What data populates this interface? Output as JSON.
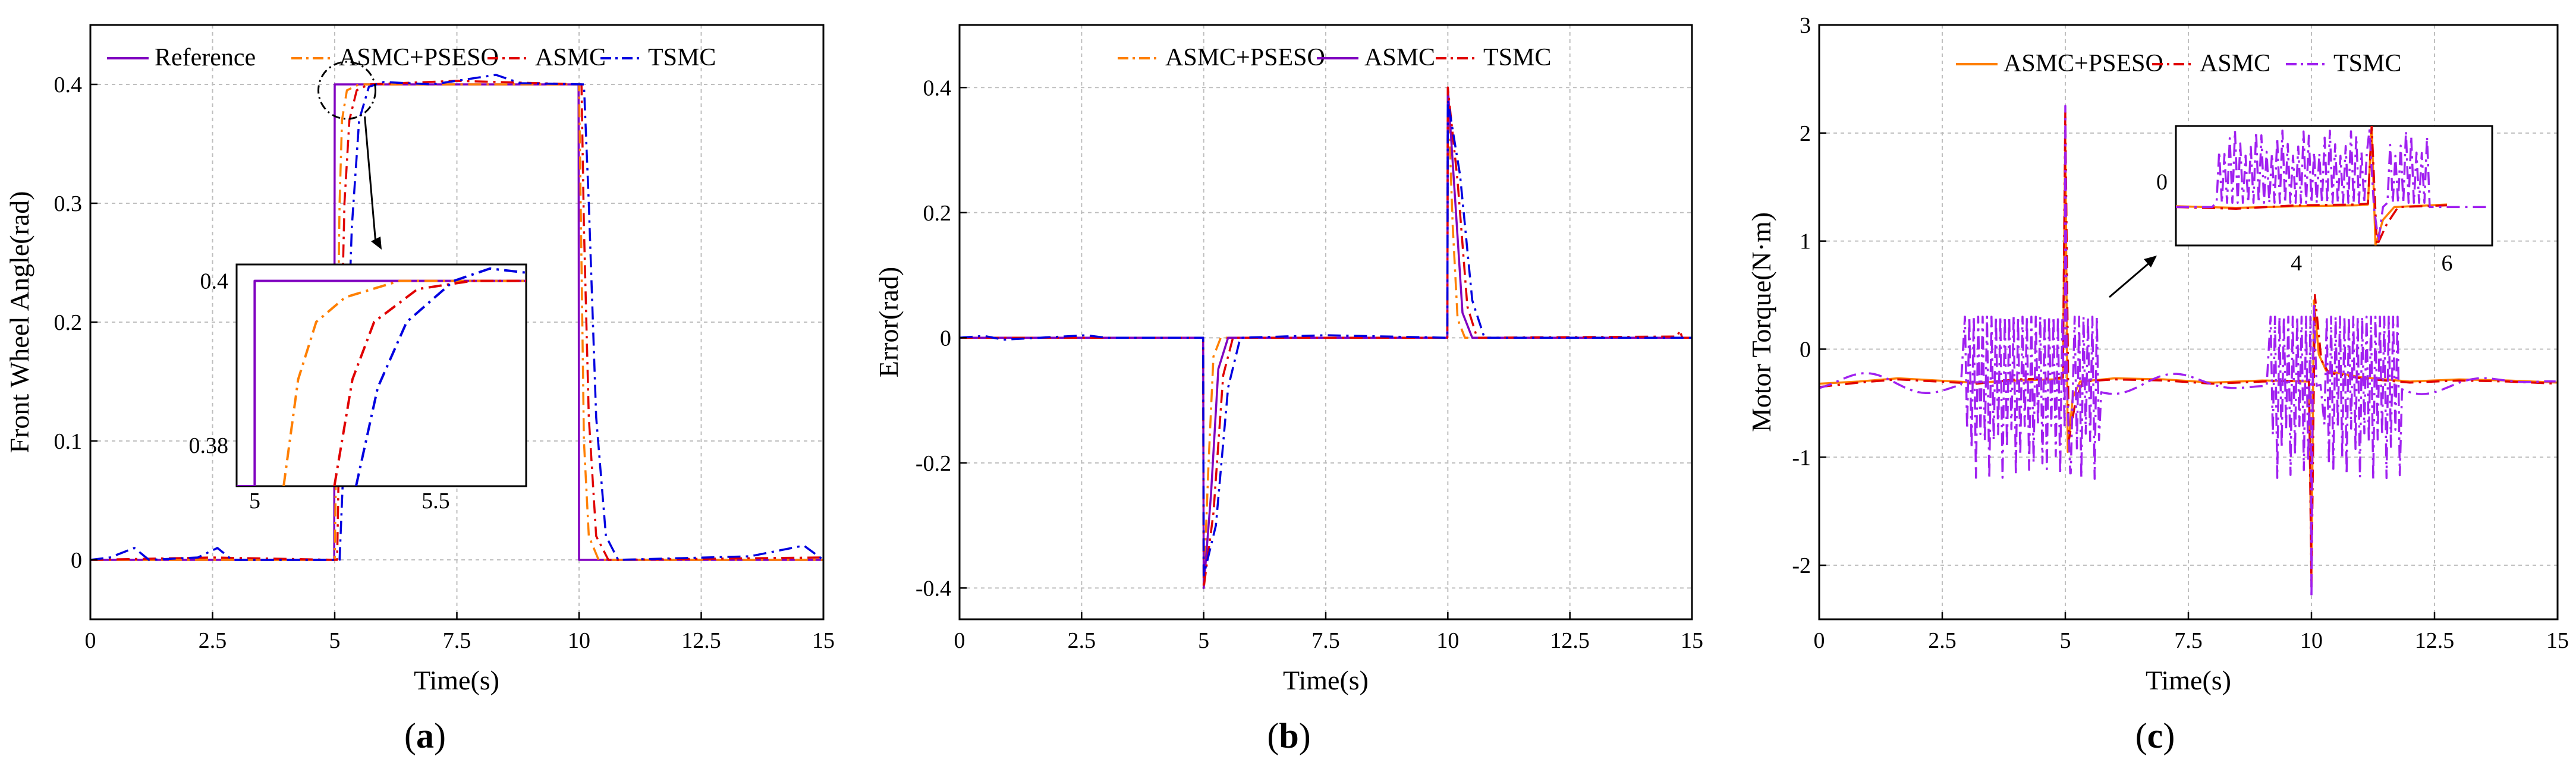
{
  "colors": {
    "reference": "#8000C0",
    "asmc_pseso": "#FF7F00",
    "asmc": "#E00000",
    "tsmc": "#0000E0",
    "tsmc_c": "#A020F0",
    "grid": "#BFBFBF"
  },
  "chart_data": [
    {
      "type": "line",
      "panel_label": "(a)",
      "panel_letter": "a",
      "xlabel": "Time(s)",
      "ylabel": "Front Wheel Angle(rad)",
      "xlim": [
        0,
        15
      ],
      "ylim": [
        -0.05,
        0.45
      ],
      "xticks": [
        0,
        2.5,
        5,
        7.5,
        10,
        12.5,
        15
      ],
      "xtick_labels": [
        "0",
        "2.5",
        "5",
        "7.5",
        "10",
        "12.5",
        "15"
      ],
      "yticks": [
        0,
        0.1,
        0.2,
        0.3,
        0.4
      ],
      "ytick_labels": [
        "0",
        "0.1",
        "0.2",
        "0.3",
        "0.4"
      ],
      "grid": true,
      "legend": {
        "placement": "top",
        "entries": [
          "Reference",
          "ASMC+PSESO",
          "ASMC",
          "TSMC"
        ]
      },
      "series": [
        {
          "name": "Reference",
          "color_key": "reference",
          "dash": "solid",
          "points": [
            [
              0,
              0
            ],
            [
              4.99,
              0
            ],
            [
              5.0,
              0.4
            ],
            [
              9.99,
              0.4
            ],
            [
              10.0,
              0
            ],
            [
              15,
              0
            ]
          ]
        },
        {
          "name": "ASMC+PSESO",
          "color_key": "asmc_pseso",
          "dash": "dashdot",
          "points": [
            [
              0,
              0
            ],
            [
              5.0,
              0
            ],
            [
              5.05,
              0.15
            ],
            [
              5.1,
              0.3
            ],
            [
              5.15,
              0.37
            ],
            [
              5.25,
              0.395
            ],
            [
              5.5,
              0.4
            ],
            [
              10.0,
              0.4
            ],
            [
              10.05,
              0.25
            ],
            [
              10.1,
              0.1
            ],
            [
              10.2,
              0.02
            ],
            [
              10.4,
              0
            ],
            [
              15,
              0
            ]
          ]
        },
        {
          "name": "ASMC",
          "color_key": "asmc",
          "dash": "dashdot",
          "points": [
            [
              0,
              0
            ],
            [
              2.5,
              0.002
            ],
            [
              5.05,
              0
            ],
            [
              5.1,
              0.12
            ],
            [
              5.2,
              0.3
            ],
            [
              5.3,
              0.37
            ],
            [
              5.45,
              0.395
            ],
            [
              5.7,
              0.4
            ],
            [
              7.5,
              0.403
            ],
            [
              10.05,
              0.4
            ],
            [
              10.1,
              0.28
            ],
            [
              10.2,
              0.12
            ],
            [
              10.35,
              0.02
            ],
            [
              10.6,
              0
            ],
            [
              15,
              0.002
            ]
          ]
        },
        {
          "name": "TSMC",
          "color_key": "tsmc",
          "dash": "dashdot",
          "points": [
            [
              0,
              0
            ],
            [
              0.4,
              0.002
            ],
            [
              0.9,
              0.01
            ],
            [
              1.2,
              0
            ],
            [
              2.2,
              0.002
            ],
            [
              2.6,
              0.01
            ],
            [
              2.9,
              0
            ],
            [
              5.1,
              0
            ],
            [
              5.2,
              0.1
            ],
            [
              5.35,
              0.28
            ],
            [
              5.5,
              0.37
            ],
            [
              5.7,
              0.398
            ],
            [
              6.0,
              0.402
            ],
            [
              7.0,
              0.4
            ],
            [
              8.3,
              0.408
            ],
            [
              8.8,
              0.401
            ],
            [
              10.1,
              0.4
            ],
            [
              10.2,
              0.3
            ],
            [
              10.35,
              0.12
            ],
            [
              10.55,
              0.02
            ],
            [
              10.8,
              0
            ],
            [
              13.5,
              0.003
            ],
            [
              14.6,
              0.012
            ],
            [
              15,
              0
            ]
          ]
        }
      ],
      "zoom_marker": {
        "x": 5.25,
        "y": 0.395
      },
      "inset": {
        "xlim": [
          4.95,
          5.75
        ],
        "ylim": [
          0.375,
          0.402
        ],
        "xticks": [
          5,
          5.5
        ],
        "xtick_labels": [
          "5",
          "5.5"
        ],
        "yticks": [
          0.4,
          0.38
        ],
        "ytick_labels": [
          "0.4",
          "0.38"
        ],
        "series": [
          {
            "color_key": "reference",
            "dash": "solid",
            "points": [
              [
                4.95,
                0.375
              ],
              [
                5.0,
                0.375
              ],
              [
                5.0,
                0.4
              ],
              [
                5.75,
                0.4
              ]
            ]
          },
          {
            "color_key": "asmc_pseso",
            "dash": "dashdot",
            "points": [
              [
                5.08,
                0.375
              ],
              [
                5.12,
                0.388
              ],
              [
                5.17,
                0.395
              ],
              [
                5.25,
                0.398
              ],
              [
                5.4,
                0.4
              ],
              [
                5.75,
                0.4
              ]
            ]
          },
          {
            "color_key": "asmc",
            "dash": "dashdot",
            "points": [
              [
                5.22,
                0.375
              ],
              [
                5.27,
                0.388
              ],
              [
                5.33,
                0.395
              ],
              [
                5.45,
                0.399
              ],
              [
                5.6,
                0.4
              ],
              [
                5.75,
                0.4
              ]
            ]
          },
          {
            "color_key": "tsmc",
            "dash": "dashdot",
            "points": [
              [
                5.28,
                0.375
              ],
              [
                5.34,
                0.387
              ],
              [
                5.42,
                0.395
              ],
              [
                5.55,
                0.4
              ],
              [
                5.65,
                0.4015
              ],
              [
                5.75,
                0.401
              ]
            ]
          }
        ]
      }
    },
    {
      "type": "line",
      "panel_label": "(b)",
      "panel_letter": "b",
      "xlabel": "Time(s)",
      "ylabel": "Error(rad)",
      "xlim": [
        0,
        15
      ],
      "ylim": [
        -0.45,
        0.5
      ],
      "xticks": [
        0,
        2.5,
        5,
        7.5,
        10,
        12.5,
        15
      ],
      "xtick_labels": [
        "0",
        "2.5",
        "5",
        "7.5",
        "10",
        "12.5",
        "15"
      ],
      "yticks": [
        -0.4,
        -0.2,
        0,
        0.2,
        0.4
      ],
      "ytick_labels": [
        "-0.4",
        "-0.2",
        "0",
        "0.2",
        "0.4"
      ],
      "grid": true,
      "legend": {
        "placement": "top",
        "entries": [
          "ASMC+PSESO",
          "ASMC",
          "TSMC"
        ]
      },
      "series": [
        {
          "name": "ASMC+PSESO",
          "color_key": "asmc_pseso",
          "dash": "dashdot",
          "points": [
            [
              0,
              0
            ],
            [
              4.99,
              0
            ],
            [
              5.0,
              -0.4
            ],
            [
              5.1,
              -0.2
            ],
            [
              5.2,
              -0.03
            ],
            [
              5.35,
              0
            ],
            [
              9.99,
              0
            ],
            [
              10.0,
              0.4
            ],
            [
              10.1,
              0.18
            ],
            [
              10.2,
              0.03
            ],
            [
              10.35,
              0
            ],
            [
              15,
              0
            ]
          ]
        },
        {
          "name": "ASMC",
          "color_key": "reference",
          "dash": "solid",
          "points": [
            [
              0,
              0
            ],
            [
              4.99,
              0
            ],
            [
              5.0,
              -0.4
            ],
            [
              5.15,
              -0.25
            ],
            [
              5.3,
              -0.05
            ],
            [
              5.5,
              0
            ],
            [
              9.99,
              0
            ],
            [
              10.0,
              0.4
            ],
            [
              10.15,
              0.22
            ],
            [
              10.3,
              0.04
            ],
            [
              10.5,
              0
            ],
            [
              15,
              0
            ]
          ]
        },
        {
          "name": "TSMC",
          "color_key": "asmc",
          "dash": "dashdot",
          "points": [
            [
              0,
              0
            ],
            [
              4.99,
              0
            ],
            [
              5.0,
              -0.4
            ],
            [
              5.2,
              -0.28
            ],
            [
              5.4,
              -0.06
            ],
            [
              5.6,
              0
            ],
            [
              9.99,
              0
            ],
            [
              10.0,
              0.4
            ],
            [
              10.2,
              0.25
            ],
            [
              10.4,
              0.05
            ],
            [
              10.6,
              0
            ],
            [
              14.7,
              0.002
            ],
            [
              14.75,
              0.012
            ],
            [
              14.8,
              0
            ],
            [
              15,
              0
            ]
          ]
        },
        {
          "name": "",
          "color_key": "tsmc",
          "dash": "dashdot",
          "points": [
            [
              0,
              0
            ],
            [
              0.5,
              0.003
            ],
            [
              0.9,
              -0.003
            ],
            [
              2.6,
              0.004
            ],
            [
              3.0,
              0
            ],
            [
              4.99,
              0
            ],
            [
              5.0,
              -0.38
            ],
            [
              5.25,
              -0.3
            ],
            [
              5.5,
              -0.08
            ],
            [
              5.75,
              0
            ],
            [
              7.5,
              0.004
            ],
            [
              9.99,
              0
            ],
            [
              10.0,
              0.38
            ],
            [
              10.25,
              0.26
            ],
            [
              10.5,
              0.06
            ],
            [
              10.75,
              0
            ],
            [
              15,
              0
            ]
          ]
        }
      ]
    },
    {
      "type": "line",
      "panel_label": "(c)",
      "panel_letter": "c",
      "xlabel": "Time(s)",
      "ylabel": "Motor Torque(N·m)",
      "xlim": [
        0,
        15
      ],
      "ylim": [
        -2.5,
        3
      ],
      "xticks": [
        0,
        2.5,
        5,
        7.5,
        10,
        12.5,
        15
      ],
      "xtick_labels": [
        "0",
        "2.5",
        "5",
        "7.5",
        "10",
        "12.5",
        "15"
      ],
      "yticks": [
        -2,
        -1,
        0,
        1,
        2,
        3
      ],
      "ytick_labels": [
        "-2",
        "-1",
        "0",
        "1",
        "2",
        "3"
      ],
      "grid": true,
      "legend": {
        "placement": "top",
        "entries": [
          "ASMC+PSESO",
          "ASMC",
          "TSMC"
        ]
      },
      "series": [
        {
          "name": "ASMC+PSESO",
          "color_key": "asmc_pseso",
          "dash": "solid",
          "points": [
            [
              0,
              -0.32
            ],
            [
              0.8,
              -0.3
            ],
            [
              1.6,
              -0.27
            ],
            [
              2.4,
              -0.29
            ],
            [
              3.2,
              -0.31
            ],
            [
              4.0,
              -0.29
            ],
            [
              4.8,
              -0.28
            ],
            [
              4.95,
              -0.27
            ],
            [
              5.0,
              2.0
            ],
            [
              5.05,
              -0.95
            ],
            [
              5.15,
              -0.45
            ],
            [
              5.3,
              -0.3
            ],
            [
              6.0,
              -0.27
            ],
            [
              7.0,
              -0.28
            ],
            [
              8.0,
              -0.31
            ],
            [
              9.0,
              -0.29
            ],
            [
              9.95,
              -0.3
            ],
            [
              10.0,
              -2.1
            ],
            [
              10.05,
              0.45
            ],
            [
              10.15,
              -0.05
            ],
            [
              10.3,
              -0.2
            ],
            [
              11.0,
              -0.26
            ],
            [
              12.0,
              -0.3
            ],
            [
              13.0,
              -0.28
            ],
            [
              14.0,
              -0.29
            ],
            [
              15,
              -0.31
            ]
          ]
        },
        {
          "name": "ASMC",
          "color_key": "asmc",
          "dash": "dashdot",
          "points": [
            [
              0,
              -0.35
            ],
            [
              0.8,
              -0.31
            ],
            [
              1.6,
              -0.28
            ],
            [
              2.4,
              -0.3
            ],
            [
              3.2,
              -0.32
            ],
            [
              4.0,
              -0.28
            ],
            [
              4.8,
              -0.27
            ],
            [
              4.95,
              -0.26
            ],
            [
              5.0,
              2.2
            ],
            [
              5.07,
              -0.85
            ],
            [
              5.2,
              -0.5
            ],
            [
              5.35,
              -0.3
            ],
            [
              6.0,
              -0.28
            ],
            [
              7.0,
              -0.29
            ],
            [
              8.0,
              -0.32
            ],
            [
              9.0,
              -0.3
            ],
            [
              9.95,
              -0.29
            ],
            [
              10.0,
              -2.2
            ],
            [
              10.07,
              0.5
            ],
            [
              10.2,
              -0.1
            ],
            [
              10.35,
              -0.22
            ],
            [
              11.0,
              -0.27
            ],
            [
              12.0,
              -0.31
            ],
            [
              13.0,
              -0.29
            ],
            [
              14.0,
              -0.3
            ],
            [
              15,
              -0.32
            ]
          ]
        },
        {
          "name": "TSMC",
          "color_key": "tsmc_c",
          "dash": "dashdot",
          "generator": "sinusoid_with_chatter",
          "chatter_windows": [
            [
              2.9,
              5.0
            ],
            [
              5.15,
              5.7
            ],
            [
              9.1,
              10.0
            ],
            [
              10.2,
              11.8
            ]
          ],
          "chatter_range": [
            -0.95,
            0.3
          ],
          "spikes": [
            [
              5.0,
              2.25
            ],
            [
              5.1,
              -1.15
            ],
            [
              10.0,
              -2.3
            ],
            [
              10.05,
              0.4
            ]
          ],
          "baseline": -0.32
        }
      ],
      "inset": {
        "xlim": [
          2.4,
          6.6
        ],
        "ylim": [
          -0.75,
          0.65
        ],
        "xticks": [
          4,
          6
        ],
        "xtick_labels": [
          "4",
          "6"
        ],
        "yticks": [
          0
        ],
        "ytick_labels": [
          "0"
        ]
      }
    }
  ]
}
